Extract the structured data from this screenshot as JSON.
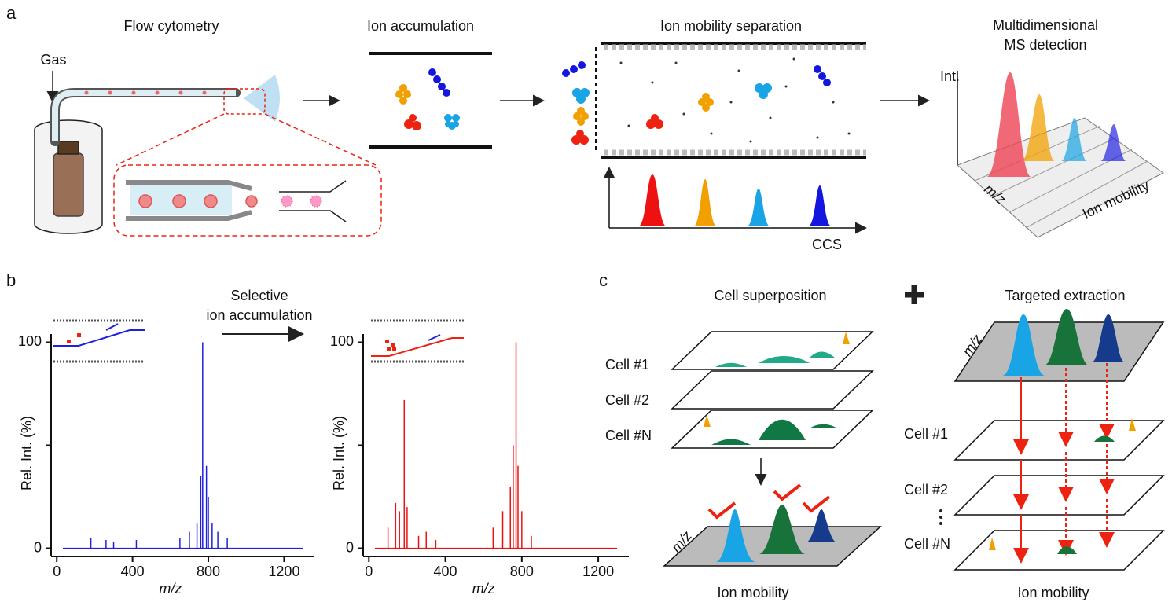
{
  "panel_labels": [
    "a",
    "b",
    "c"
  ],
  "panel_a": {
    "steps": [
      "Flow cytometry",
      "Ion accumulation",
      "Ion mobility separation"
    ],
    "detection_title": [
      "Multidimensional",
      "MS detection"
    ],
    "gas": "Gas",
    "ccs": "CCS",
    "int": "Int.",
    "mz": "m/z",
    "mobility": "Ion mobility"
  },
  "panel_b": {
    "arrow_text": [
      "Selective",
      "ion accumulation"
    ],
    "charts": [
      {
        "type": "bar",
        "x_label": "m/z",
        "y_label": "Rel. Int. (%)",
        "color": "#1f1fe0",
        "xlim": [
          -30,
          1360
        ],
        "xticks": [
          0,
          400,
          800,
          1200
        ],
        "ylim": [
          -4,
          104
        ],
        "yticks": [
          0,
          {
            "value": 50,
            "label": null
          },
          100
        ],
        "x": [
          180,
          260,
          300,
          420,
          650,
          700,
          740,
          760,
          770,
          790,
          800,
          820,
          850,
          900
        ],
        "values": [
          5,
          4,
          3,
          4,
          5,
          8,
          12,
          35,
          100,
          40,
          25,
          12,
          8,
          5
        ]
      },
      {
        "type": "bar",
        "x_label": "m/z",
        "y_label": "Rel. Int. (%)",
        "color": "#ee1111",
        "xlim": [
          -30,
          1360
        ],
        "xticks": [
          0,
          400,
          800,
          1200
        ],
        "ylim": [
          -4,
          104
        ],
        "yticks": [
          0,
          {
            "value": 50,
            "label": null
          },
          100
        ],
        "x": [
          100,
          140,
          160,
          185,
          200,
          260,
          300,
          350,
          650,
          700,
          740,
          755,
          770,
          780,
          800,
          850
        ],
        "values": [
          10,
          22,
          18,
          72,
          20,
          6,
          8,
          4,
          10,
          18,
          30,
          50,
          100,
          40,
          18,
          6
        ]
      }
    ]
  },
  "panel_c": {
    "left_title": "Cell superposition",
    "right_title": "Targeted extraction",
    "cells": [
      "Cell #1",
      "Cell #2",
      "Cell #N"
    ],
    "mz": "m/z",
    "mobility": "Ion mobility"
  }
}
